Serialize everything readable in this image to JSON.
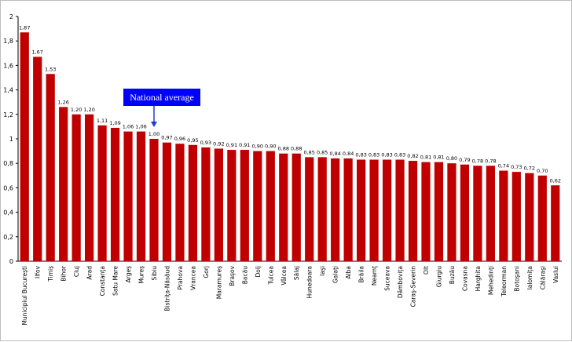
{
  "chart_data": {
    "type": "bar",
    "title": "",
    "xlabel": "",
    "ylabel": "",
    "ylim": [
      0,
      2
    ],
    "yticks": [
      "0",
      "0,2",
      "0,4",
      "0,6",
      "0,8",
      "1",
      "1,2",
      "1,4",
      "1,6",
      "1,8",
      "2"
    ],
    "grid": false,
    "legend": "none",
    "bar_color": "#c00000",
    "categories": [
      "Municipiul Bucureşti",
      "Ilfov",
      "Timiş",
      "Bihor",
      "Cluj",
      "Arad",
      "Constanţa",
      "Satu Mare",
      "Argeş",
      "Mureş",
      "Sibiu",
      "Bistriţa-Năsăud",
      "Prahova",
      "Vrancea",
      "Gorj",
      "Maramureş",
      "Braşov",
      "Bacău",
      "Dolj",
      "Tulcea",
      "Vâlcea",
      "Sălaj",
      "Hunedoara",
      "Iaşi",
      "Galaţi",
      "Alba",
      "Brăila",
      "Neamţ",
      "Suceava",
      "Dâmboviţa",
      "Caraş-Severin",
      "Olt",
      "Giurgiu",
      "Buzău",
      "Covasna",
      "Harghita",
      "Mehedinţi",
      "Teleorman",
      "Botoşani",
      "Ialomiţa",
      "Călăraşi",
      "Vaslui"
    ],
    "values": [
      1.87,
      1.67,
      1.53,
      1.26,
      1.2,
      1.2,
      1.11,
      1.09,
      1.06,
      1.06,
      1.0,
      0.97,
      0.96,
      0.95,
      0.93,
      0.92,
      0.91,
      0.91,
      0.9,
      0.9,
      0.88,
      0.88,
      0.85,
      0.85,
      0.84,
      0.84,
      0.83,
      0.83,
      0.83,
      0.83,
      0.82,
      0.81,
      0.81,
      0.8,
      0.79,
      0.78,
      0.78,
      0.74,
      0.73,
      0.72,
      0.7,
      0.62
    ],
    "value_labels": [
      "1,87",
      "1,67",
      "1,53",
      "1,26",
      "1,20",
      "1,20",
      "1,11",
      "1,09",
      "1,06",
      "1,06",
      "1,00",
      "0,97",
      "0,96",
      "0,95",
      "0,93",
      "0,92",
      "0,91",
      "0,91",
      "0,90",
      "0,90",
      "0,88",
      "0,88",
      "0,85",
      "0,85",
      "0,84",
      "0,84",
      "0,83",
      "0,83",
      "0,83",
      "0,83",
      "0,82",
      "0,81",
      "0,81",
      "0,80",
      "0,79",
      "0,78",
      "0,78",
      "0,74",
      "0,73",
      "0,72",
      "0,70",
      "0,62"
    ],
    "annotations": [
      {
        "text": "National average",
        "category": "Sibiu",
        "box_color": "#0000ff"
      }
    ]
  }
}
